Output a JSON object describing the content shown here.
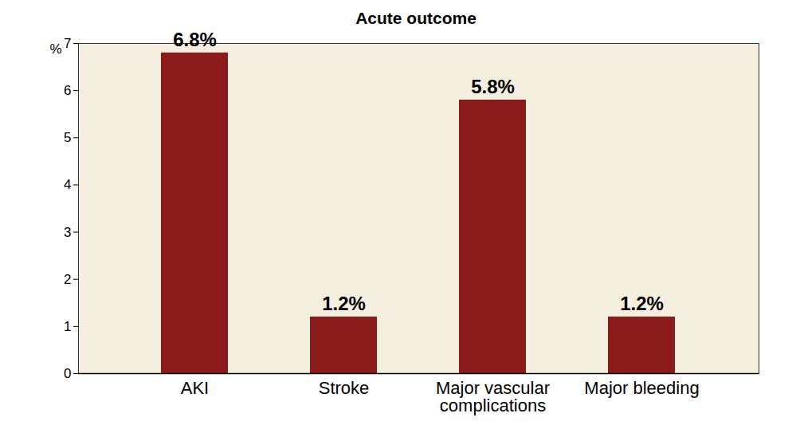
{
  "chart_data": {
    "type": "bar",
    "title": "Acute outcome",
    "ylabel": "%",
    "categories": [
      "AKI",
      "Stroke",
      "Major vascular complications",
      "Major bleeding"
    ],
    "values": [
      6.8,
      1.2,
      5.8,
      1.2
    ],
    "value_labels": [
      "6.8%",
      "1.2%",
      "5.8%",
      "1.2%"
    ],
    "color": "#8b1a1a",
    "ylim": [
      0,
      7
    ],
    "yticks": [
      0,
      1,
      2,
      3,
      4,
      5,
      6,
      7
    ],
    "grid": false,
    "data_labels": true
  }
}
